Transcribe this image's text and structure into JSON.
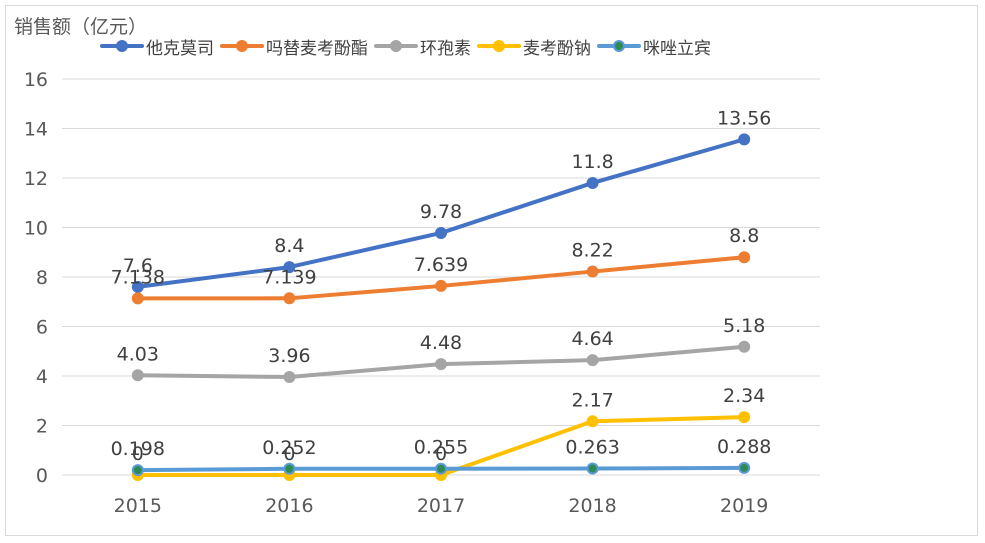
{
  "chart_data": {
    "type": "line",
    "title": "",
    "ylabel": "销售额（亿元）",
    "xlabel": "",
    "categories": [
      "2015",
      "2016",
      "2017",
      "2018",
      "2019"
    ],
    "ylim": [
      0,
      16
    ],
    "yticks": [
      "0",
      "2",
      "4",
      "6",
      "8",
      "10",
      "12",
      "14",
      "16"
    ],
    "grid": "horizontal",
    "legend_position": "top",
    "series": [
      {
        "name": "他克莫司",
        "color": "#4472c4",
        "values": [
          7.6,
          8.4,
          9.78,
          11.8,
          13.56
        ],
        "labels": [
          "7.6",
          "8.4",
          "9.78",
          "11.8",
          "13.56"
        ]
      },
      {
        "name": "吗替麦考酚酯",
        "color": "#ed7d31",
        "values": [
          7.138,
          7.139,
          7.639,
          8.22,
          8.8
        ],
        "labels": [
          "7.138",
          "7.139",
          "7.639",
          "8.22",
          "8.8"
        ]
      },
      {
        "name": "环孢素",
        "color": "#a5a5a5",
        "values": [
          4.03,
          3.96,
          4.48,
          4.64,
          5.18
        ],
        "labels": [
          "4.03",
          "3.96",
          "4.48",
          "4.64",
          "5.18"
        ]
      },
      {
        "name": "麦考酚钠",
        "color": "#ffc000",
        "values": [
          0,
          0,
          0,
          2.17,
          2.34
        ],
        "labels": [
          "0",
          "0",
          "0",
          "2.17",
          "2.34"
        ]
      },
      {
        "name": "咪唑立宾",
        "color": "#5b9bd5",
        "marker_color": "#2e8b57",
        "values": [
          0.198,
          0.252,
          0.255,
          0.263,
          0.288
        ],
        "labels": [
          "0.198",
          "0.252",
          "0.255",
          "0.263",
          "0.288"
        ]
      }
    ]
  }
}
